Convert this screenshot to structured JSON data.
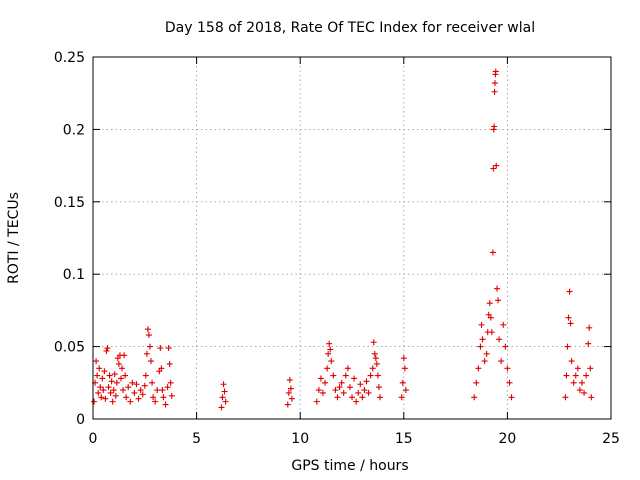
{
  "chart_data": {
    "type": "scatter",
    "title": "Day 158 of 2018, Rate Of TEC Index for receiver wlal",
    "xlabel": "GPS time / hours",
    "ylabel": "ROTI / TECUs",
    "xlim": [
      0,
      25
    ],
    "ylim": [
      0,
      0.25
    ],
    "x_ticks": [
      0,
      5,
      10,
      15,
      20,
      25
    ],
    "x_tick_labels": [
      "0",
      "5",
      "10",
      "15",
      "20",
      "25"
    ],
    "y_ticks": [
      0,
      0.05,
      0.1,
      0.15,
      0.2,
      0.25
    ],
    "y_tick_labels": [
      "0",
      "0.05",
      "0.1",
      "0.15",
      "0.2",
      "0.25"
    ],
    "grid": true,
    "marker": "+",
    "marker_color": "#e00000",
    "series": [
      {
        "name": "ROTI",
        "points": [
          [
            0.05,
            0.012
          ],
          [
            0.1,
            0.025
          ],
          [
            0.15,
            0.04
          ],
          [
            0.2,
            0.03
          ],
          [
            0.25,
            0.018
          ],
          [
            0.3,
            0.035
          ],
          [
            0.35,
            0.022
          ],
          [
            0.4,
            0.015
          ],
          [
            0.45,
            0.028
          ],
          [
            0.5,
            0.02
          ],
          [
            0.55,
            0.033
          ],
          [
            0.6,
            0.014
          ],
          [
            0.65,
            0.047
          ],
          [
            0.7,
            0.049
          ],
          [
            0.75,
            0.022
          ],
          [
            0.8,
            0.03
          ],
          [
            0.85,
            0.018
          ],
          [
            0.9,
            0.026
          ],
          [
            0.95,
            0.012
          ],
          [
            1.0,
            0.02
          ],
          [
            1.05,
            0.031
          ],
          [
            1.1,
            0.016
          ],
          [
            1.15,
            0.025
          ],
          [
            1.2,
            0.042
          ],
          [
            1.25,
            0.038
          ],
          [
            1.3,
            0.044
          ],
          [
            1.35,
            0.028
          ],
          [
            1.4,
            0.035
          ],
          [
            1.45,
            0.02
          ],
          [
            1.5,
            0.044
          ],
          [
            1.55,
            0.03
          ],
          [
            1.6,
            0.015
          ],
          [
            1.7,
            0.022
          ],
          [
            1.8,
            0.012
          ],
          [
            1.9,
            0.025
          ],
          [
            2.0,
            0.018
          ],
          [
            2.1,
            0.024
          ],
          [
            2.2,
            0.014
          ],
          [
            2.3,
            0.02
          ],
          [
            2.4,
            0.017
          ],
          [
            2.5,
            0.023
          ],
          [
            2.55,
            0.03
          ],
          [
            2.6,
            0.045
          ],
          [
            2.65,
            0.062
          ],
          [
            2.7,
            0.058
          ],
          [
            2.75,
            0.05
          ],
          [
            2.8,
            0.04
          ],
          [
            2.85,
            0.025
          ],
          [
            2.9,
            0.015
          ],
          [
            3.0,
            0.012
          ],
          [
            3.1,
            0.02
          ],
          [
            3.2,
            0.033
          ],
          [
            3.25,
            0.049
          ],
          [
            3.3,
            0.035
          ],
          [
            3.35,
            0.02
          ],
          [
            3.4,
            0.015
          ],
          [
            3.5,
            0.01
          ],
          [
            3.6,
            0.022
          ],
          [
            3.65,
            0.049
          ],
          [
            3.7,
            0.038
          ],
          [
            3.75,
            0.025
          ],
          [
            3.8,
            0.016
          ],
          [
            6.2,
            0.008
          ],
          [
            6.25,
            0.015
          ],
          [
            6.3,
            0.024
          ],
          [
            6.35,
            0.019
          ],
          [
            6.4,
            0.012
          ],
          [
            9.4,
            0.01
          ],
          [
            9.45,
            0.018
          ],
          [
            9.5,
            0.027
          ],
          [
            9.55,
            0.021
          ],
          [
            9.6,
            0.014
          ],
          [
            10.8,
            0.012
          ],
          [
            10.9,
            0.02
          ],
          [
            11.0,
            0.028
          ],
          [
            11.1,
            0.018
          ],
          [
            11.2,
            0.025
          ],
          [
            11.3,
            0.035
          ],
          [
            11.35,
            0.045
          ],
          [
            11.4,
            0.052
          ],
          [
            11.45,
            0.048
          ],
          [
            11.5,
            0.04
          ],
          [
            11.6,
            0.03
          ],
          [
            11.7,
            0.02
          ],
          [
            11.8,
            0.015
          ],
          [
            11.9,
            0.022
          ],
          [
            12.0,
            0.025
          ],
          [
            12.1,
            0.018
          ],
          [
            12.2,
            0.03
          ],
          [
            12.3,
            0.035
          ],
          [
            12.4,
            0.022
          ],
          [
            12.5,
            0.015
          ],
          [
            12.6,
            0.028
          ],
          [
            12.7,
            0.012
          ],
          [
            12.8,
            0.018
          ],
          [
            12.9,
            0.024
          ],
          [
            13.0,
            0.015
          ],
          [
            13.1,
            0.02
          ],
          [
            13.2,
            0.026
          ],
          [
            13.3,
            0.018
          ],
          [
            13.4,
            0.03
          ],
          [
            13.5,
            0.035
          ],
          [
            13.55,
            0.053
          ],
          [
            13.6,
            0.045
          ],
          [
            13.65,
            0.042
          ],
          [
            13.7,
            0.038
          ],
          [
            13.75,
            0.03
          ],
          [
            13.8,
            0.022
          ],
          [
            13.85,
            0.015
          ],
          [
            14.9,
            0.015
          ],
          [
            14.95,
            0.025
          ],
          [
            15.0,
            0.042
          ],
          [
            15.05,
            0.035
          ],
          [
            15.1,
            0.02
          ],
          [
            18.4,
            0.015
          ],
          [
            18.5,
            0.025
          ],
          [
            18.6,
            0.035
          ],
          [
            18.7,
            0.05
          ],
          [
            18.75,
            0.065
          ],
          [
            18.8,
            0.055
          ],
          [
            18.9,
            0.04
          ],
          [
            19.0,
            0.045
          ],
          [
            19.05,
            0.06
          ],
          [
            19.1,
            0.072
          ],
          [
            19.15,
            0.08
          ],
          [
            19.2,
            0.07
          ],
          [
            19.25,
            0.06
          ],
          [
            19.3,
            0.115
          ],
          [
            19.32,
            0.173
          ],
          [
            19.34,
            0.2
          ],
          [
            19.36,
            0.202
          ],
          [
            19.38,
            0.226
          ],
          [
            19.4,
            0.232
          ],
          [
            19.42,
            0.238
          ],
          [
            19.44,
            0.24
          ],
          [
            19.46,
            0.175
          ],
          [
            19.5,
            0.09
          ],
          [
            19.55,
            0.082
          ],
          [
            19.6,
            0.055
          ],
          [
            19.7,
            0.04
          ],
          [
            19.8,
            0.065
          ],
          [
            19.9,
            0.05
          ],
          [
            20.0,
            0.035
          ],
          [
            20.1,
            0.025
          ],
          [
            20.2,
            0.015
          ],
          [
            22.8,
            0.015
          ],
          [
            22.85,
            0.03
          ],
          [
            22.9,
            0.05
          ],
          [
            22.95,
            0.07
          ],
          [
            23.0,
            0.088
          ],
          [
            23.05,
            0.066
          ],
          [
            23.1,
            0.04
          ],
          [
            23.2,
            0.025
          ],
          [
            23.3,
            0.03
          ],
          [
            23.4,
            0.035
          ],
          [
            23.5,
            0.02
          ],
          [
            23.6,
            0.025
          ],
          [
            23.7,
            0.018
          ],
          [
            23.8,
            0.03
          ],
          [
            23.9,
            0.052
          ],
          [
            23.95,
            0.063
          ],
          [
            24.0,
            0.035
          ],
          [
            24.05,
            0.015
          ]
        ]
      }
    ]
  }
}
